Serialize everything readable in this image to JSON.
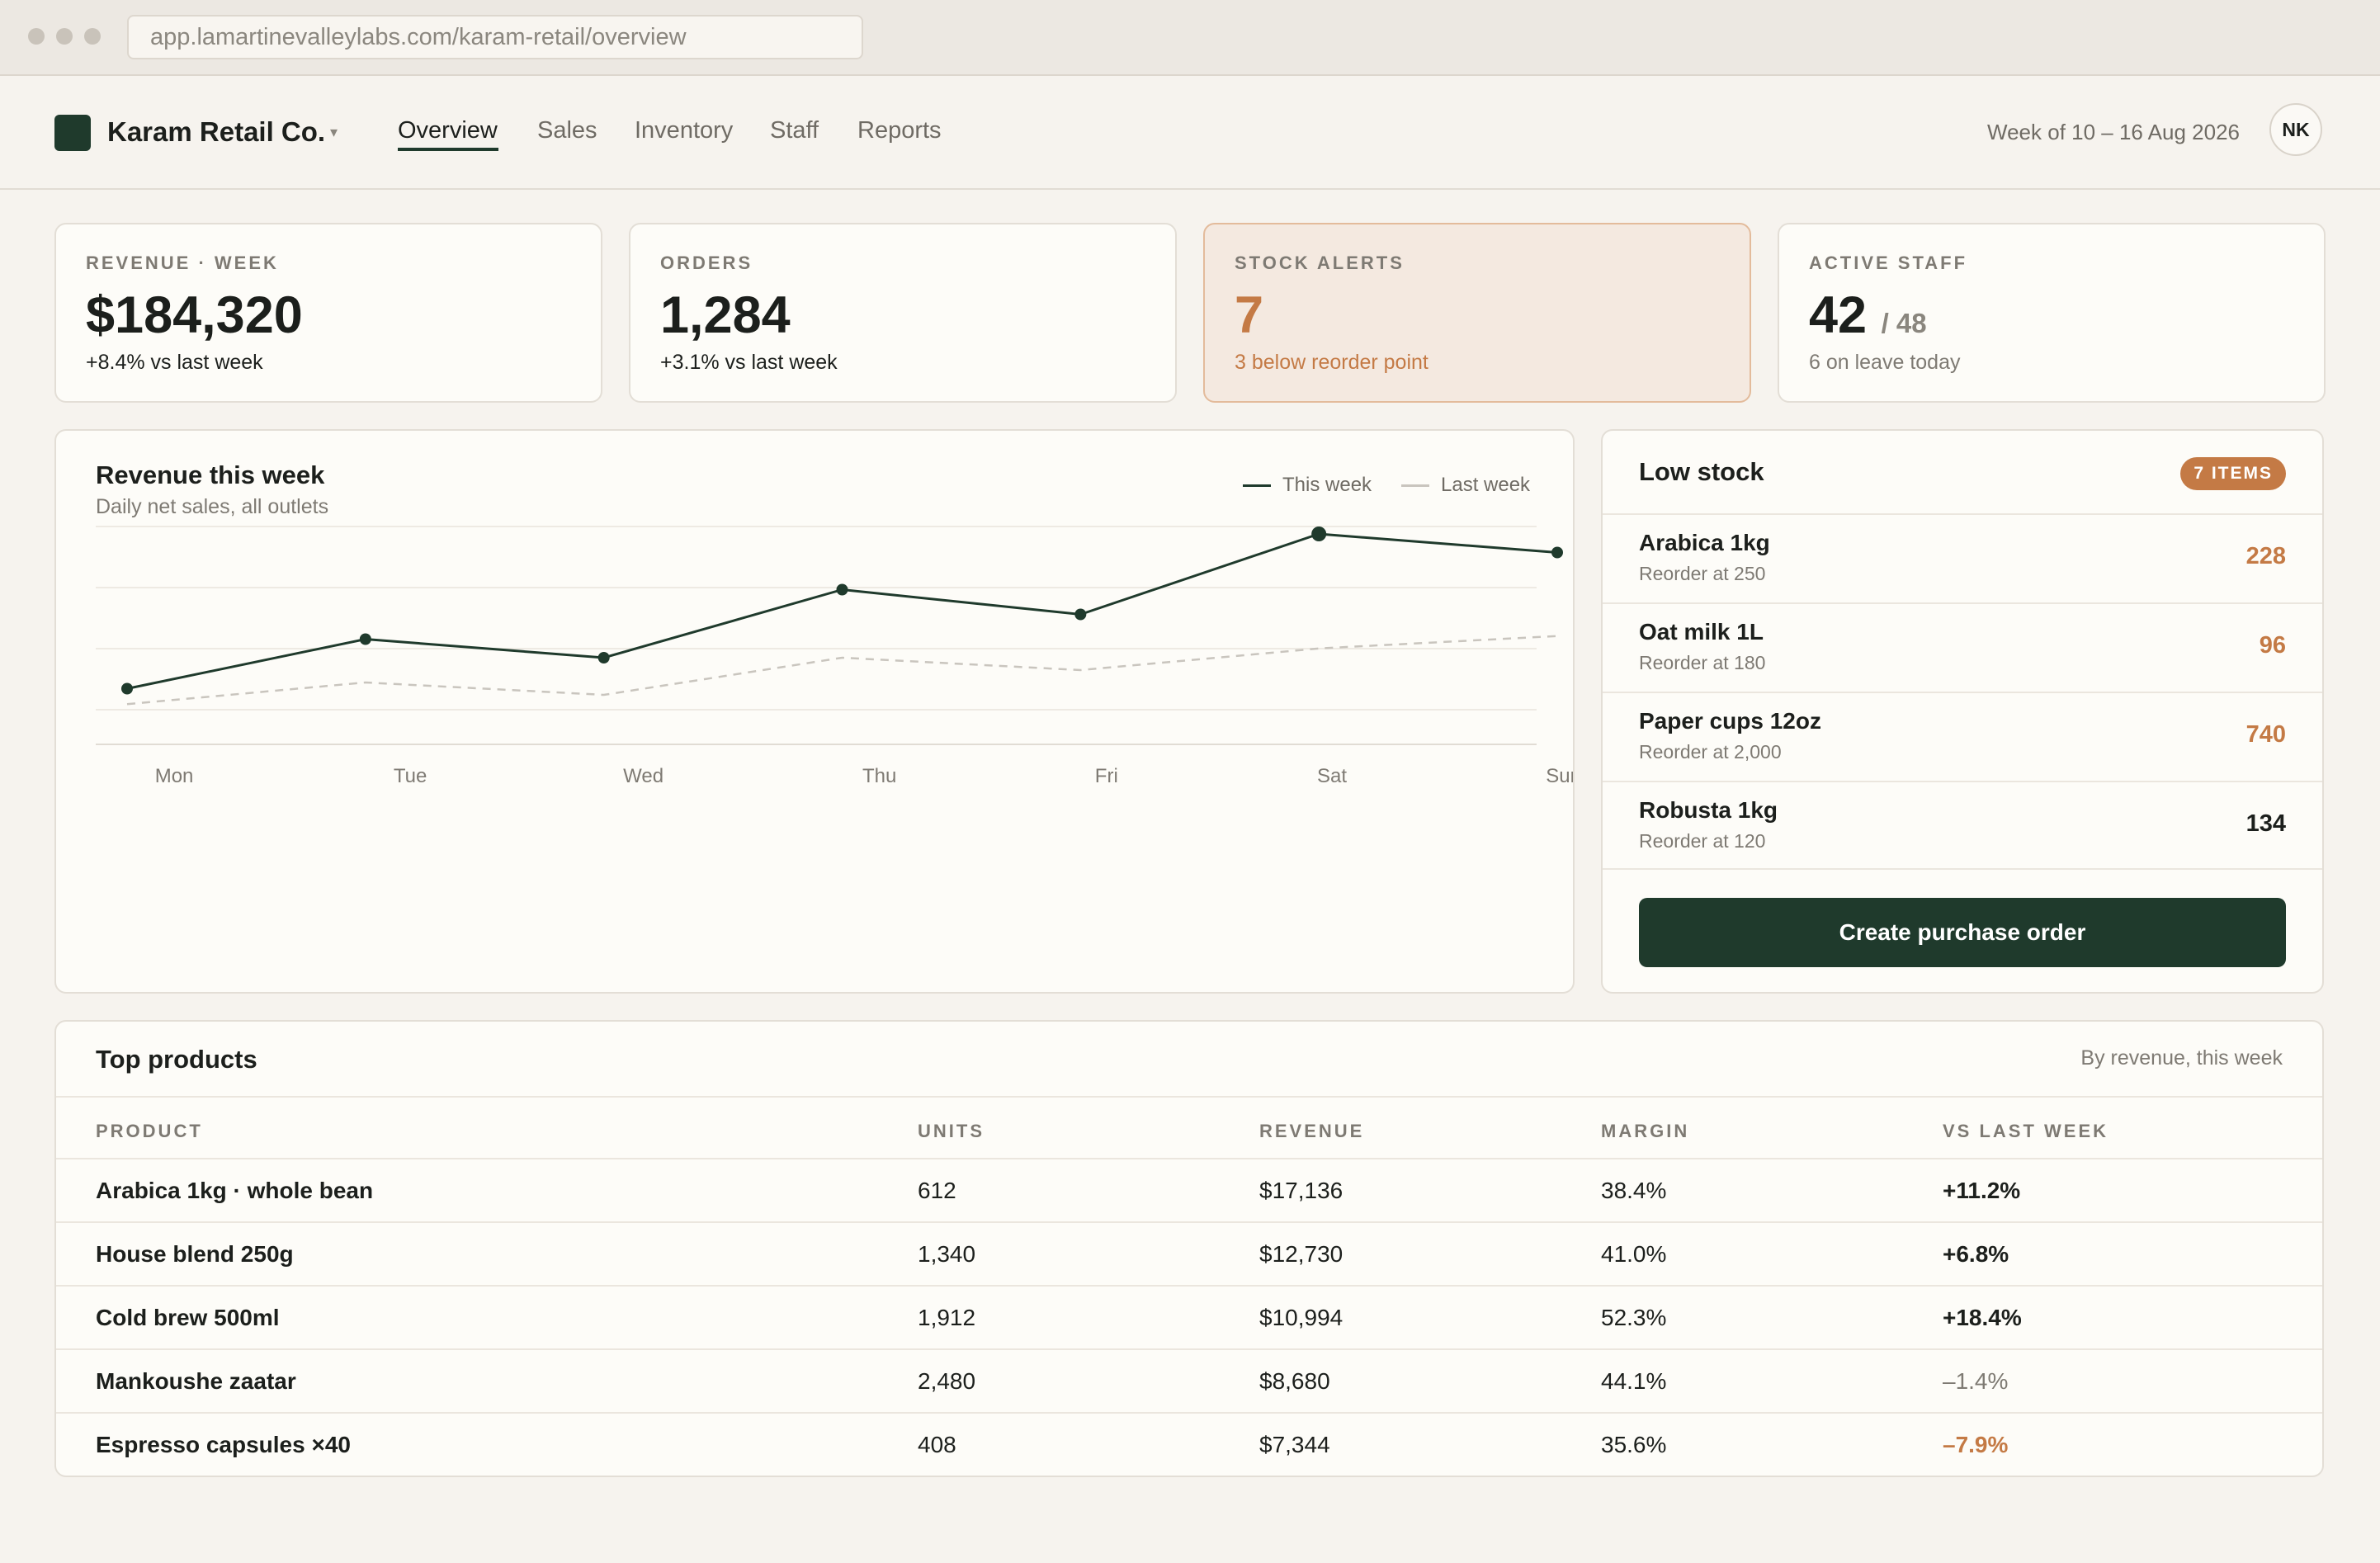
{
  "browser": {
    "url": "app.lamartinevalleylabs.com/karam-retail/overview"
  },
  "header": {
    "brand": "Karam Retail Co.",
    "brand_caret": "▾",
    "nav": [
      "Overview",
      "Sales",
      "Inventory",
      "Staff",
      "Reports"
    ],
    "active_nav": "Overview",
    "week": "Week of 10 – 16 Aug 2026",
    "avatar": "NK"
  },
  "kpis": {
    "revenue": {
      "label": "REVENUE · WEEK",
      "value": "$184,320",
      "sub": "+8.4% vs last week"
    },
    "orders": {
      "label": "ORDERS",
      "value": "1,284",
      "sub": "+3.1% vs last week"
    },
    "alerts": {
      "label": "STOCK ALERTS",
      "value": "7",
      "sub": "3 below reorder point"
    },
    "staff": {
      "label": "ACTIVE STAFF",
      "value": "42",
      "total": "/ 48",
      "sub": "6 on leave today"
    }
  },
  "revenue_chart": {
    "title": "Revenue this week",
    "subtitle": "Daily net sales, all outlets",
    "legend_this": "This week",
    "legend_last": "Last week",
    "colors": {
      "this_week": "#1f3a2c",
      "last_week": "#c9c5be"
    }
  },
  "chart_data": {
    "type": "line",
    "title": "Revenue this week",
    "subtitle": "Daily net sales, all outlets",
    "x": [
      "Mon",
      "Tue",
      "Wed",
      "Thu",
      "Fri",
      "Sat",
      "Sun"
    ],
    "ylim": [
      0,
      40
    ],
    "grid": true,
    "legend": "top-right",
    "series": [
      {
        "name": "This week",
        "values": [
          9,
          17,
          14,
          25,
          21,
          34,
          31
        ]
      },
      {
        "name": "Last week",
        "values": [
          6.5,
          10,
          8,
          14,
          12,
          15.5,
          17.5
        ]
      }
    ]
  },
  "low_stock": {
    "title": "Low stock",
    "badge": "7 ITEMS",
    "items": [
      {
        "name": "Arabica 1kg",
        "reorder": "Reorder at 250",
        "qty": "228",
        "alert": true
      },
      {
        "name": "Oat milk 1L",
        "reorder": "Reorder at 180",
        "qty": "96",
        "alert": true
      },
      {
        "name": "Paper cups 12oz",
        "reorder": "Reorder at 2,000",
        "qty": "740",
        "alert": true
      },
      {
        "name": "Robusta 1kg",
        "reorder": "Reorder at 120",
        "qty": "134",
        "alert": false
      }
    ],
    "button": "Create purchase order"
  },
  "top_products": {
    "title": "Top products",
    "subtitle": "By revenue, this week",
    "columns": [
      "PRODUCT",
      "UNITS",
      "REVENUE",
      "MARGIN",
      "VS LAST WEEK"
    ],
    "rows": [
      [
        "Arabica 1kg · whole bean",
        "612",
        "$17,136",
        "38.4%",
        "+11.2%"
      ],
      [
        "House blend 250g",
        "1,340",
        "$12,730",
        "41.0%",
        "+6.8%"
      ],
      [
        "Cold brew 500ml",
        "1,912",
        "$10,994",
        "52.3%",
        "+18.4%"
      ],
      [
        "Mankoushe zaatar",
        "2,480",
        "$8,680",
        "44.1%",
        "–1.4%"
      ],
      [
        "Espresso capsules ×40",
        "408",
        "$7,344",
        "35.6%",
        "–7.9%"
      ]
    ]
  }
}
